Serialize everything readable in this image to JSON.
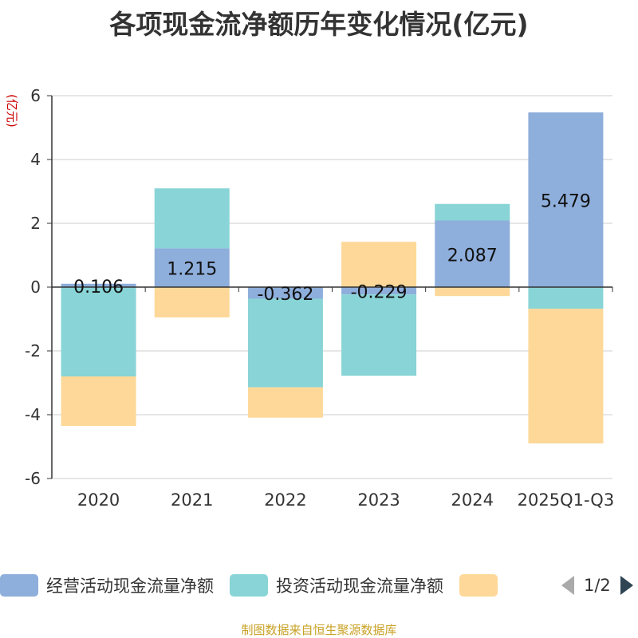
{
  "title": "各项现金流净额历年变化情况(亿元)",
  "source": "制图数据来自恒生聚源数据库",
  "pager": {
    "text": "1/2",
    "prev_icon": "triangle-left-icon",
    "next_icon": "triangle-right-icon"
  },
  "chart_data": {
    "type": "bar",
    "stacked": true,
    "title": "各项现金流净额历年变化情况(亿元)",
    "ylabel": "(亿元)",
    "ylim": [
      -6,
      6
    ],
    "yticks": [
      -6,
      -4,
      -2,
      0,
      2,
      4,
      6
    ],
    "categories": [
      "2020",
      "2021",
      "2022",
      "2023",
      "2024",
      "2025Q1-Q3"
    ],
    "series": [
      {
        "name": "经营活动现金流量净额",
        "color": "#8eaedb",
        "values": [
          0.106,
          1.215,
          -0.362,
          -0.229,
          2.087,
          5.479
        ],
        "labels": [
          "0.106",
          "1.215",
          "-0.362",
          "-0.229",
          "2.087",
          "5.479"
        ]
      },
      {
        "name": "投资活动现金流量净额",
        "color": "#88d4d6",
        "values": [
          -2.8,
          1.88,
          -2.78,
          -2.55,
          0.52,
          -0.68
        ]
      },
      {
        "name": "",
        "color": "#fdd898",
        "values": [
          -1.55,
          -0.95,
          -0.95,
          1.42,
          -0.28,
          -4.22
        ]
      }
    ],
    "legend_position": "bottom"
  }
}
